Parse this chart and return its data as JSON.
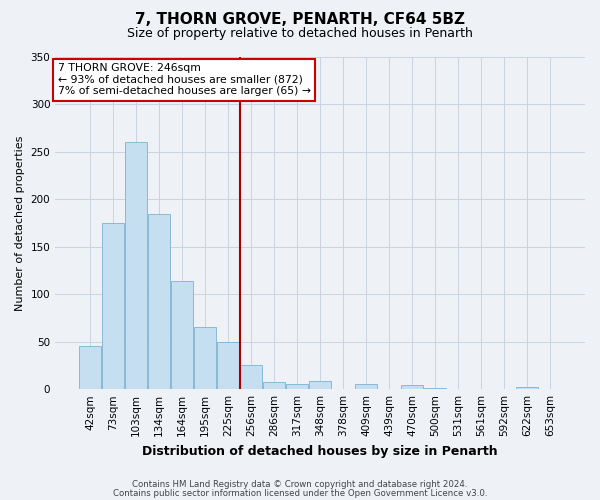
{
  "title": "7, THORN GROVE, PENARTH, CF64 5BZ",
  "subtitle": "Size of property relative to detached houses in Penarth",
  "xlabel": "Distribution of detached houses by size in Penarth",
  "ylabel": "Number of detached properties",
  "bar_labels": [
    "42sqm",
    "73sqm",
    "103sqm",
    "134sqm",
    "164sqm",
    "195sqm",
    "225sqm",
    "256sqm",
    "286sqm",
    "317sqm",
    "348sqm",
    "378sqm",
    "409sqm",
    "439sqm",
    "470sqm",
    "500sqm",
    "531sqm",
    "561sqm",
    "592sqm",
    "622sqm",
    "653sqm"
  ],
  "bar_values": [
    45,
    175,
    260,
    184,
    114,
    65,
    50,
    25,
    8,
    5,
    9,
    0,
    5,
    0,
    4,
    1,
    0,
    0,
    0,
    2,
    0
  ],
  "bar_color": "#c5dff0",
  "bar_edge_color": "#7ab3d4",
  "vline_color": "#aa0000",
  "annotation_title": "7 THORN GROVE: 246sqm",
  "annotation_line1": "← 93% of detached houses are smaller (872)",
  "annotation_line2": "7% of semi-detached houses are larger (65) →",
  "annotation_box_facecolor": "#ffffff",
  "annotation_box_edgecolor": "#cc0000",
  "ylim": [
    0,
    350
  ],
  "yticks": [
    0,
    50,
    100,
    150,
    200,
    250,
    300,
    350
  ],
  "footer1": "Contains HM Land Registry data © Crown copyright and database right 2024.",
  "footer2": "Contains public sector information licensed under the Open Government Licence v3.0.",
  "bg_color": "#eef2f7",
  "grid_color": "#c8d4e0",
  "title_fontsize": 11,
  "subtitle_fontsize": 9,
  "ylabel_fontsize": 8,
  "xlabel_fontsize": 9,
  "tick_fontsize": 7.5,
  "footer_fontsize": 6.2
}
